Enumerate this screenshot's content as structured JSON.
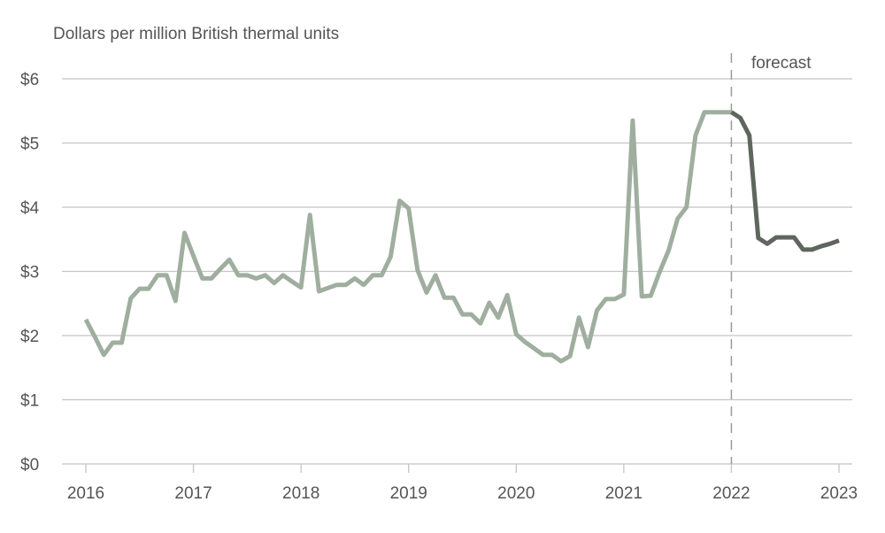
{
  "chart_data": {
    "type": "line",
    "ylabel": "Dollars per million British thermal units",
    "annotation": "forecast",
    "y_ticks": [
      "$0",
      "$1",
      "$2",
      "$3",
      "$4",
      "$5",
      "$6"
    ],
    "x_ticks": [
      "2016",
      "2017",
      "2018",
      "2019",
      "2020",
      "2021",
      "2022",
      "2023"
    ],
    "ylim": [
      0,
      6
    ],
    "xlim": [
      2016,
      2023
    ],
    "grid": "horizontal",
    "colors": {
      "historical": "#9fae9f",
      "forecast": "#5e665e",
      "grid": "#c4c4c4",
      "divider": "#9a9a9a"
    },
    "series": [
      {
        "segment": "historical",
        "x": [
          2016.0,
          2016.083,
          2016.167,
          2016.25,
          2016.333,
          2016.417,
          2016.5,
          2016.583,
          2016.667,
          2016.75,
          2016.833,
          2016.917,
          2017.0,
          2017.083,
          2017.167,
          2017.25,
          2017.333,
          2017.417,
          2017.5,
          2017.583,
          2017.667,
          2017.75,
          2017.833,
          2017.917,
          2018.0,
          2018.083,
          2018.167,
          2018.25,
          2018.333,
          2018.417,
          2018.5,
          2018.583,
          2018.667,
          2018.75,
          2018.833,
          2018.917,
          2019.0,
          2019.083,
          2019.167,
          2019.25,
          2019.333,
          2019.417,
          2019.5,
          2019.583,
          2019.667,
          2019.75,
          2019.833,
          2019.917,
          2020.0,
          2020.083,
          2020.167,
          2020.25,
          2020.333,
          2020.417,
          2020.5,
          2020.583,
          2020.667,
          2020.75,
          2020.833,
          2020.917,
          2021.0,
          2021.083,
          2021.167,
          2021.25,
          2021.333,
          2021.417,
          2021.5,
          2021.583,
          2021.667,
          2021.75,
          2021.833,
          2021.917,
          2022.0
        ],
        "y": [
          2.25,
          1.98,
          1.7,
          1.89,
          1.89,
          2.58,
          2.73,
          2.73,
          2.94,
          2.94,
          2.54,
          3.6,
          3.24,
          2.89,
          2.89,
          3.04,
          3.18,
          2.94,
          2.94,
          2.89,
          2.94,
          2.82,
          2.94,
          2.84,
          2.75,
          3.88,
          2.69,
          2.74,
          2.79,
          2.79,
          2.89,
          2.79,
          2.94,
          2.94,
          3.23,
          4.1,
          3.98,
          3.02,
          2.67,
          2.94,
          2.59,
          2.59,
          2.33,
          2.33,
          2.19,
          2.51,
          2.28,
          2.63,
          2.02,
          1.9,
          1.8,
          1.7,
          1.7,
          1.6,
          1.68,
          2.28,
          1.82,
          2.39,
          2.57,
          2.57,
          2.64,
          5.35,
          2.61,
          2.62,
          2.99,
          3.33,
          3.82,
          4.0,
          5.12,
          5.48,
          5.48,
          5.48,
          5.48
        ]
      },
      {
        "segment": "forecast",
        "x": [
          2022.0,
          2022.083,
          2022.167,
          2022.25,
          2022.333,
          2022.417,
          2022.5,
          2022.583,
          2022.667,
          2022.75,
          2022.833,
          2022.917,
          2023.0
        ],
        "y": [
          5.48,
          5.39,
          5.12,
          3.52,
          3.43,
          3.53,
          3.53,
          3.53,
          3.34,
          3.34,
          3.39,
          3.43,
          3.48
        ]
      }
    ]
  }
}
